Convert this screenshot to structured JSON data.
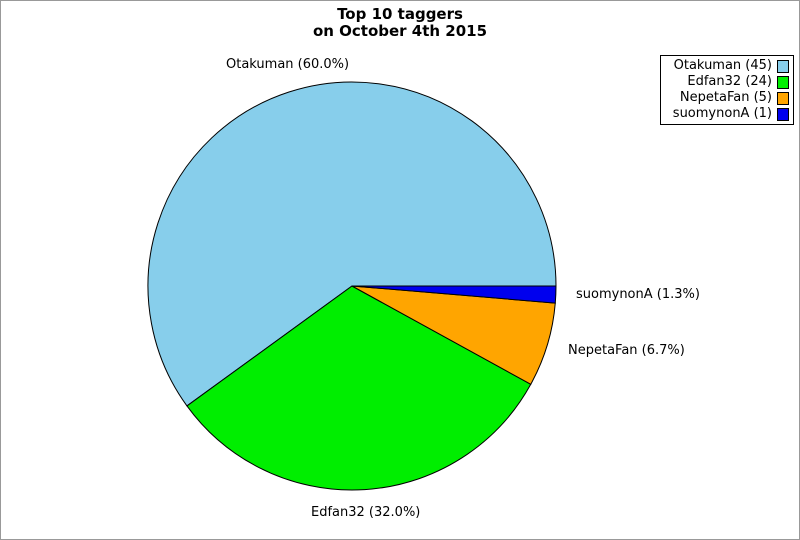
{
  "chart_data": {
    "type": "pie",
    "title": "Top 10 taggers\non October 4th 2015",
    "title_lines": [
      "Top 10 taggers",
      "on October 4th 2015"
    ],
    "slices": [
      {
        "label": "Otakuman",
        "value": 45,
        "percent": "60.0%",
        "color": "#87ceeb",
        "callout": "Otakuman (60.0%)",
        "legend": "Otakuman (45)"
      },
      {
        "label": "Edfan32",
        "value": 24,
        "percent": "32.0%",
        "color": "#00ee00",
        "callout": "Edfan32 (32.0%)",
        "legend": "Edfan32 (24)"
      },
      {
        "label": "NepetaFan",
        "value": 5,
        "percent": "6.7%",
        "color": "#ffa500",
        "callout": "NepetaFan (6.7%)",
        "legend": "NepetaFan (5)"
      },
      {
        "label": "suomynonA",
        "value": 1,
        "percent": "1.3%",
        "color": "#0000ee",
        "callout": "suomynonA (1.3%)",
        "legend": "suomynonA (1)"
      }
    ],
    "start_angle_deg": 0,
    "direction": "counterclockwise",
    "legend_position": "top-right",
    "outline_color": "#000000",
    "background_color": "#ffffff",
    "frame_color": "#999999"
  }
}
